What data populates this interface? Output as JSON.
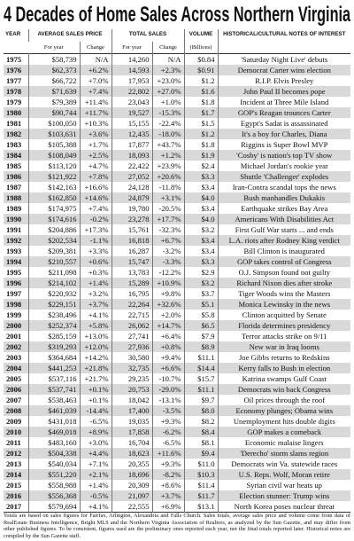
{
  "header": {
    "title": "4 Decades of Home Sales Across Northern Virginia"
  },
  "table": {
    "headers": {
      "year": "YEAR",
      "price": "AVERAGE SALES PRICE",
      "price_for_year": "For year",
      "price_change": "Change",
      "sales": "TOTAL SALES",
      "sales_for_year": "For year",
      "sales_change": "Change",
      "volume": "VOLUME",
      "volume_unit": "(Billions)",
      "notes": "HISTORICAL/CULTURAL NOTES OF INTEREST"
    },
    "rows": [
      [
        "1975",
        "$58,739",
        "N/A",
        "14,260",
        "N/A",
        "$0.84",
        "'Saturday Night Live' debuts"
      ],
      [
        "1976",
        "$62,373",
        "+6.2%",
        "14,593",
        "+2.3%",
        "$0.91",
        "Democrat Carter wins election"
      ],
      [
        "1977",
        "$66,722",
        "+7.0%",
        "17,953",
        "+23.0%",
        "$1.2",
        "R.I.P. Elvis Presley"
      ],
      [
        "1978",
        "$71,639",
        "+7.4%",
        "22,802",
        "+27.0%",
        "$1.6",
        "John Paul II becomes pope"
      ],
      [
        "1979",
        "$79,389",
        "+11.4%",
        "23,043",
        "+1.0%",
        "$1.8",
        "Incident at Three Mile Island"
      ],
      [
        "1980",
        "$90,744",
        "+11.7%",
        "19,527",
        "-15.3%",
        "$1.7",
        "GOP's Reagan trounces Carter"
      ],
      [
        "1981",
        "$100,050",
        "+10.3%",
        "15,155",
        "-22.4%",
        "$1.5",
        "Egypt's Sadat is assassinated"
      ],
      [
        "1982",
        "$103,631",
        "+3.6%",
        "12,435",
        "-18.0%",
        "$1.2",
        "It's a boy for Charles, Diana"
      ],
      [
        "1983",
        "$105,388",
        "+1.7%",
        "17,877",
        "+43.7%",
        "$1.8",
        "Riggins is Super Bowl MVP"
      ],
      [
        "1984",
        "$108,049",
        "+2.5%",
        "18,093",
        "+1.2%",
        "$1.9",
        "'Cosby' is nation's top TV show"
      ],
      [
        "1985",
        "$113,120",
        "+4.7%",
        "22,422",
        "+23.9%",
        "$2.4",
        "Michael Jordan's rookie year"
      ],
      [
        "1986",
        "$121,922",
        "+7.8%",
        "27,052",
        "+20.6%",
        "$3.3",
        "Shuttle 'Challenger' explodes"
      ],
      [
        "1987",
        "$142,163",
        "+16.6%",
        "24,128",
        "-11.8%",
        "$3.4",
        "Iran-Contra scandal tops the news"
      ],
      [
        "1988",
        "$162,850",
        "+14.6%",
        "24,879",
        "+3.1%",
        "$4.0",
        "Bush manhandles Dukakis"
      ],
      [
        "1989",
        "$174,975",
        "+7.4%",
        "19,780",
        "-20.5%",
        "$3.4",
        "Earthquake strikes Bay Area"
      ],
      [
        "1990",
        "$174,616",
        "-0.2%",
        "23,278",
        "+17.7%",
        "$4.0",
        "Americans With Disabilities Act"
      ],
      [
        "1991",
        "$204,886",
        "+17.3%",
        "15,761",
        "-32.3%",
        "$3.2",
        "First Gulf War starts ... and ends"
      ],
      [
        "1992",
        "$202,534",
        "-1.1%",
        "16,818",
        "+6.7%",
        "$3.4",
        "L.A. riots after Rodney King verdict"
      ],
      [
        "1993",
        "$209,381",
        "+3.3%",
        "16,287",
        "-3.2%",
        "$3.4",
        "Bill Clinton is inaugurated"
      ],
      [
        "1994",
        "$210,557",
        "+0.6%",
        "15,747",
        "-3.3%",
        "$3.3",
        "GOP takes control of Congress"
      ],
      [
        "1995",
        "$211,098",
        "+0.3%",
        "13,783",
        "-12.2%",
        "$2.9",
        "O.J. Simpson found not guilty"
      ],
      [
        "1996",
        "$214,102",
        "+1.4%",
        "15,289",
        "+10.9%",
        "$3.2",
        "Richard Nixon dies after stroke"
      ],
      [
        "1997",
        "$220,932",
        "+3.2%",
        "16,795",
        "+9.8%",
        "$3.7",
        "Tiger Woods wins the Masters"
      ],
      [
        "1998",
        "$229,151",
        "+3.7%",
        "22,264",
        "+32.6%",
        "$5.1",
        "Monica Lewinsky in the news"
      ],
      [
        "1999",
        "$238,496",
        "+4.1%",
        "22,715",
        "+2.0%",
        "$5.8",
        "Clinton acquitted by Senate"
      ],
      [
        "2000",
        "$252,374",
        "+5.8%",
        "26,062",
        "+14.7%",
        "$6.5",
        "Florida determines presidency"
      ],
      [
        "2001",
        "$285,159",
        "+13.0%",
        "27,741",
        "+6.4%",
        "$7.9",
        "Terror attacks strike on 9/11"
      ],
      [
        "2002",
        "$319,293",
        "+12.0%",
        "27,936",
        "+0.8%",
        "$8.9",
        "New war in Iraq looms"
      ],
      [
        "2003",
        "$364,684",
        "+14.2%",
        "30,580",
        "+9.4%",
        "$11.1",
        "Joe Gibbs returns to Redskins"
      ],
      [
        "2004",
        "$441,253",
        "+21.8%",
        "32,735",
        "+6.6%",
        "$14.4",
        "Kerry falls to Bush in election"
      ],
      [
        "2005",
        "$537,116",
        "+21.7%",
        "29,235",
        "-10.7%",
        "$15.7",
        "Katrina swamps Gulf Coast"
      ],
      [
        "2006",
        "$537,741",
        "+0.1%",
        "20,753",
        "-29.0%",
        "$11.1",
        "Democrats win back Congress"
      ],
      [
        "2007",
        "$538,463",
        "+0.1%",
        "18,042",
        "-13.1%",
        "$9.7",
        "Oil prices through the roof"
      ],
      [
        "2008",
        "$461,039",
        "-14.4%",
        "17,400",
        "-3.5%",
        "$8.0",
        "Economy plunges; Obama wins"
      ],
      [
        "2009",
        "$431,018",
        "-6.5%",
        "19,035",
        "+9.3%",
        "$8.2",
        "Unemployment hits double digits"
      ],
      [
        "2010",
        "$469,018",
        "+8.9%",
        "17,858",
        "-6.2%",
        "$8.4",
        "GOP makes a comeback"
      ],
      [
        "2011",
        "$483,160",
        "+3.0%",
        "16,704",
        "-6.5%",
        "$8.1",
        "Economic malaise lingers"
      ],
      [
        "2012",
        "$504,338",
        "+4.4%",
        "18,623",
        "+11.6%",
        "$9.4",
        "'Derecho' storm slams region"
      ],
      [
        "2013",
        "$540,034",
        "+7.1%",
        "20,355",
        "+9.3%",
        "$11.0",
        "Democrats win Va. statewide races"
      ],
      [
        "2014",
        "$551,220",
        "+2.1%",
        "18,696",
        "-8.2%",
        "$10.3",
        "U.S. Reps. Wolf, Moran retire"
      ],
      [
        "2015",
        "$558,988",
        "+1.4%",
        "20,309",
        "+8.6%",
        "$11.4",
        "Syrian civil war heats up"
      ],
      [
        "2016",
        "$556,368",
        "-0.5%",
        "21,097",
        "+3.7%",
        "$11.7",
        "Election stunner: Trump wins"
      ],
      [
        "2017",
        "$579,694",
        "+4.1%",
        "22,555",
        "+6.9%",
        "$13.1",
        "North Korea poses nuclear threat"
      ]
    ]
  },
  "footer": {
    "note": "Totals are based on sales figures for Fairfax, Arlington, Alexandria and Falls Church. Sales totals, average sales price and volume come from data of RealEstate Business Intelligence, Bright MLS and the Northern Virginia Association of Realtors, as analyzed by the Sun Gazette, and may differ from other published figures. To be consistent, figures used are the preliminary ones reported each year, not the final totals reported later. Historical notes are compiled by the Sun Gazette staff."
  }
}
